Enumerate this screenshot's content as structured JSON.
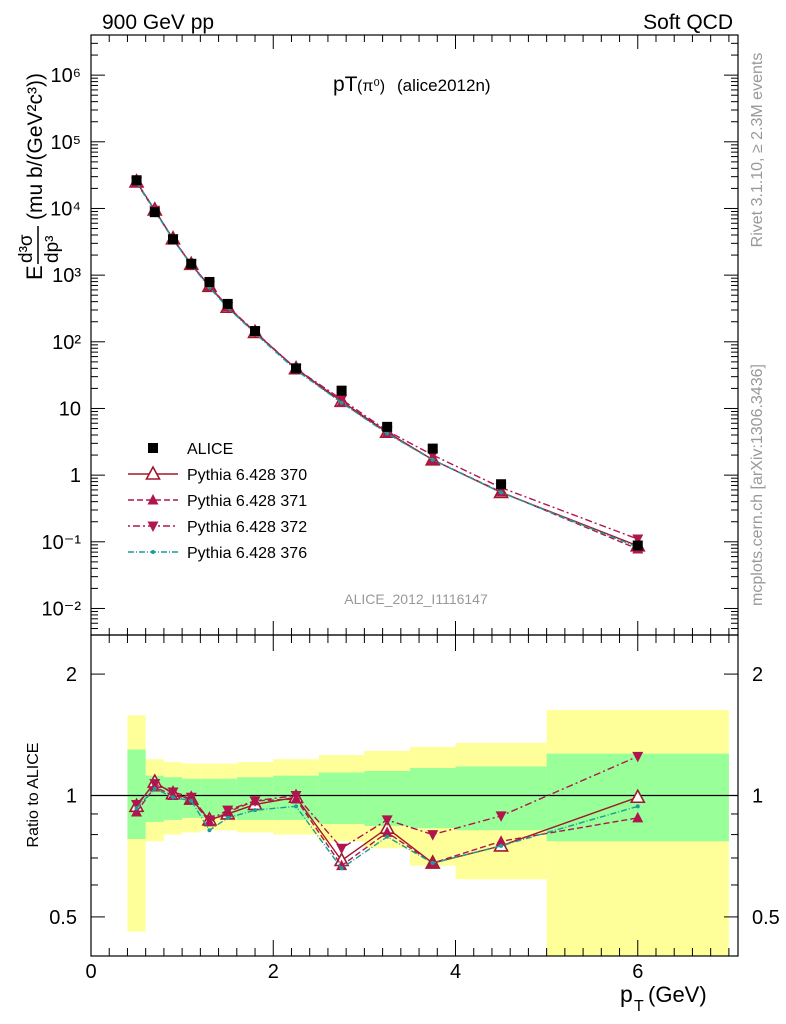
{
  "header": {
    "left": "900 GeV pp",
    "right": "Soft QCD"
  },
  "side_labels": {
    "rivet": "Rivet 3.1.10, ≥ 2.3M events",
    "mcplots": "mcplots.cern.ch [arXiv:1306.3436]"
  },
  "colors": {
    "data": "#000000",
    "p370": "#a0182c",
    "p371": "#b0164e",
    "p372": "#b0164e",
    "p376": "#1a9e9a",
    "band_inner": "#99ff99",
    "band_outer": "#ffff99"
  },
  "chart_data": [
    {
      "type": "scatter",
      "title_main": "pT",
      "title_particle": "(π⁰)",
      "title_tag": "(alice2012n)",
      "analysis_id": "ALICE_2012_I1116147",
      "yscale": "log",
      "ylim": [
        0.004,
        4000000
      ],
      "xlim": [
        0,
        7.1
      ],
      "ytick_labels": {
        "major": [
          "10⁻²",
          "10⁻¹",
          "1",
          "10",
          "10²",
          "10³",
          "10⁴",
          "10⁵",
          "10⁶"
        ]
      },
      "ylabel_parts": {
        "E": "E",
        "num": "d³σ",
        "den": "dp³",
        "unit": "(mu b/(GeV²c³))"
      },
      "x": [
        0.5,
        0.7,
        0.9,
        1.1,
        1.3,
        1.5,
        1.8,
        2.25,
        2.75,
        3.25,
        3.75,
        4.5,
        6.0
      ],
      "series": [
        {
          "name": "ALICE",
          "values": [
            26500,
            8800,
            3450,
            1480,
            790,
            370,
            145,
            40,
            18.5,
            5.3,
            2.5,
            0.73,
            0.088
          ]
        },
        {
          "name": "Pythia 6.428 370",
          "values": [
            25000,
            9500,
            3500,
            1450,
            680,
            330,
            138,
            39.5,
            12.8,
            4.4,
            1.7,
            0.55,
            0.087
          ]
        },
        {
          "name": "Pythia 6.428 371",
          "values": [
            24200,
            9200,
            3450,
            1440,
            680,
            335,
            141,
            39,
            12.3,
            4.3,
            1.7,
            0.56,
            0.078
          ]
        },
        {
          "name": "Pythia 6.428 372",
          "values": [
            25300,
            9400,
            3500,
            1460,
            690,
            340,
            141,
            39.5,
            13.7,
            4.6,
            2.0,
            0.65,
            0.11
          ]
        },
        {
          "name": "Pythia 6.428 376",
          "values": [
            24800,
            9300,
            3400,
            1430,
            650,
            325,
            134,
            37.5,
            12.2,
            4.2,
            1.7,
            0.55,
            0.083
          ]
        }
      ]
    },
    {
      "type": "scatter",
      "ylabel": "Ratio to ALICE",
      "xlabel": "p",
      "xlabel_sub": "T",
      "xlabel_unit": "(GeV)",
      "ylim": [
        0.4,
        2.5
      ],
      "xlim": [
        0,
        7.1
      ],
      "xtick_labels": [
        "0",
        "2",
        "4",
        "6"
      ],
      "ytick_labels": [
        "0.5",
        "1",
        "2"
      ],
      "bands": [
        {
          "xlo": 0.4,
          "xhi": 0.6,
          "inner": [
            0.78,
            1.3
          ],
          "outer": [
            0.46,
            1.58
          ]
        },
        {
          "xlo": 0.6,
          "xhi": 0.8,
          "inner": [
            0.86,
            1.12
          ],
          "outer": [
            0.77,
            1.23
          ]
        },
        {
          "xlo": 0.8,
          "xhi": 1.0,
          "inner": [
            0.87,
            1.11
          ],
          "outer": [
            0.8,
            1.21
          ]
        },
        {
          "xlo": 1.0,
          "xhi": 1.2,
          "inner": [
            0.88,
            1.1
          ],
          "outer": [
            0.81,
            1.2
          ]
        },
        {
          "xlo": 1.2,
          "xhi": 1.4,
          "inner": [
            0.88,
            1.1
          ],
          "outer": [
            0.82,
            1.2
          ]
        },
        {
          "xlo": 1.4,
          "xhi": 1.6,
          "inner": [
            0.88,
            1.1
          ],
          "outer": [
            0.82,
            1.2
          ]
        },
        {
          "xlo": 1.6,
          "xhi": 2.0,
          "inner": [
            0.87,
            1.11
          ],
          "outer": [
            0.81,
            1.21
          ]
        },
        {
          "xlo": 2.0,
          "xhi": 2.5,
          "inner": [
            0.87,
            1.12
          ],
          "outer": [
            0.8,
            1.23
          ]
        },
        {
          "xlo": 2.5,
          "xhi": 3.0,
          "inner": [
            0.85,
            1.14
          ],
          "outer": [
            0.77,
            1.26
          ]
        },
        {
          "xlo": 3.0,
          "xhi": 3.5,
          "inner": [
            0.84,
            1.15
          ],
          "outer": [
            0.74,
            1.29
          ]
        },
        {
          "xlo": 3.5,
          "xhi": 4.0,
          "inner": [
            0.83,
            1.17
          ],
          "outer": [
            0.67,
            1.32
          ]
        },
        {
          "xlo": 4.0,
          "xhi": 5.0,
          "inner": [
            0.82,
            1.18
          ],
          "outer": [
            0.62,
            1.35
          ]
        },
        {
          "xlo": 5.0,
          "xhi": 7.0,
          "inner": [
            0.77,
            1.27
          ],
          "outer": [
            0.4,
            1.63
          ]
        }
      ],
      "x": [
        0.5,
        0.7,
        0.9,
        1.1,
        1.3,
        1.5,
        1.8,
        2.25,
        2.75,
        3.25,
        3.75,
        4.5,
        6.0
      ],
      "series": [
        {
          "name": "Pythia 6.428 370",
          "values": [
            0.94,
            1.08,
            1.01,
            0.98,
            0.87,
            0.9,
            0.95,
            0.99,
            0.69,
            0.83,
            0.68,
            0.75,
            0.99
          ]
        },
        {
          "name": "Pythia 6.428 371",
          "values": [
            0.91,
            1.05,
            1.0,
            0.98,
            0.86,
            0.91,
            0.97,
            0.98,
            0.67,
            0.81,
            0.68,
            0.77,
            0.88
          ]
        },
        {
          "name": "Pythia 6.428 372",
          "values": [
            0.95,
            1.07,
            1.02,
            0.99,
            0.87,
            0.92,
            0.97,
            1.0,
            0.74,
            0.87,
            0.8,
            0.89,
            1.25
          ]
        },
        {
          "name": "Pythia 6.428 376",
          "values": [
            0.93,
            1.04,
            0.99,
            0.97,
            0.82,
            0.88,
            0.92,
            0.94,
            0.66,
            0.79,
            0.68,
            0.75,
            0.94
          ]
        }
      ]
    }
  ]
}
